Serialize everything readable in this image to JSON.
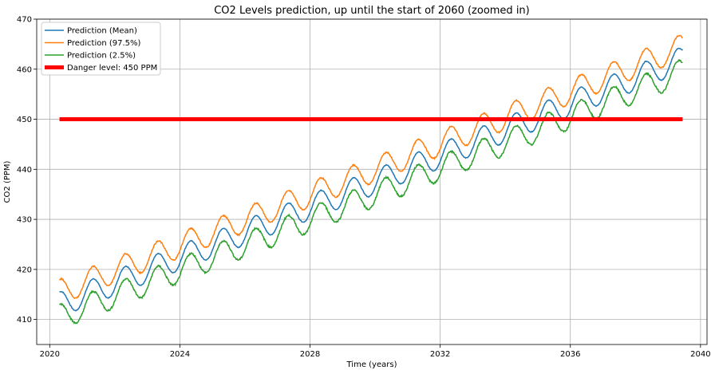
{
  "chart_data": {
    "type": "line",
    "title": "CO2 Levels prediction, up until the start of 2060 (zoomed in)",
    "xlabel": "Time (years)",
    "ylabel": "CO2 (PPM)",
    "xlim": [
      2019.6,
      2040.2
    ],
    "ylim": [
      405,
      470
    ],
    "xticks": [
      2020,
      2024,
      2028,
      2032,
      2036,
      2040
    ],
    "yticks": [
      410,
      420,
      430,
      440,
      450,
      460,
      470
    ],
    "grid": true,
    "legend_position": "top-left",
    "x_start": 2020.3,
    "x_end": 2039.45,
    "seasonal_amplitude": 2.5,
    "series": [
      {
        "name": "Prediction (Mean)",
        "color": "#1f77b4",
        "trend": [
          [
            2020.3,
            413.0
          ],
          [
            2030,
            437.5
          ],
          [
            2039.45,
            462.0
          ]
        ],
        "noise": 0.15
      },
      {
        "name": "Prediction (97.5%)",
        "color": "#ff7f0e",
        "trend": [
          [
            2020.3,
            415.5
          ],
          [
            2030,
            440.0
          ],
          [
            2039.45,
            464.5
          ]
        ],
        "noise": 0.25
      },
      {
        "name": "Prediction (2.5%)",
        "color": "#2ca02c",
        "trend": [
          [
            2020.3,
            410.5
          ],
          [
            2030,
            435.0
          ],
          [
            2039.45,
            459.5
          ]
        ],
        "noise": 0.35
      }
    ],
    "threshold": {
      "name": "Danger level: 450 PPM",
      "value": 450,
      "color": "#ff0000",
      "x": [
        2020.3,
        2039.45
      ]
    }
  }
}
